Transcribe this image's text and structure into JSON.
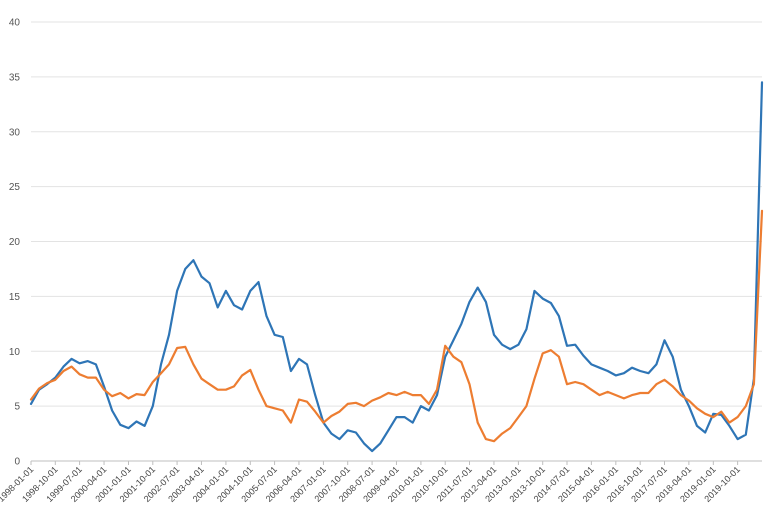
{
  "chart_data": {
    "type": "line",
    "title": "",
    "xlabel": "",
    "ylabel": "",
    "ylim": [
      0,
      40
    ],
    "yticks": [
      0,
      5,
      10,
      15,
      20,
      25,
      30,
      35,
      40
    ],
    "grid": true,
    "legend": "none",
    "xticks": [
      "1998-01-01",
      "1998-10-01",
      "1999-07-01",
      "2000-04-01",
      "2001-01-01",
      "2001-10-01",
      "2002-07-01",
      "2003-04-01",
      "2004-01-01",
      "2004-10-01",
      "2005-07-01",
      "2006-04-01",
      "2007-01-01",
      "2007-10-01",
      "2008-07-01",
      "2009-04-01",
      "2010-01-01",
      "2010-10-01",
      "2011-07-01",
      "2012-04-01",
      "2013-01-01",
      "2013-10-01",
      "2014-07-01",
      "2015-04-01",
      "2016-01-01",
      "2016-10-01",
      "2017-07-01",
      "2018-04-01",
      "2019-01-01",
      "2019-10-01"
    ],
    "x_start": "1998-01-01",
    "x_end": "2020-07-01",
    "series": [
      {
        "color": "#2e75b6",
        "points": [
          [
            "1998-01-01",
            5.2
          ],
          [
            "1998-04-01",
            6.5
          ],
          [
            "1998-07-01",
            7.0
          ],
          [
            "1998-10-01",
            7.6
          ],
          [
            "1999-01-01",
            8.6
          ],
          [
            "1999-04-01",
            9.3
          ],
          [
            "1999-07-01",
            8.9
          ],
          [
            "1999-10-01",
            9.1
          ],
          [
            "2000-01-01",
            8.8
          ],
          [
            "2000-04-01",
            6.8
          ],
          [
            "2000-07-01",
            4.6
          ],
          [
            "2000-10-01",
            3.3
          ],
          [
            "2001-01-01",
            3.0
          ],
          [
            "2001-04-01",
            3.6
          ],
          [
            "2001-07-01",
            3.2
          ],
          [
            "2001-10-01",
            5.0
          ],
          [
            "2002-01-01",
            8.8
          ],
          [
            "2002-04-01",
            11.5
          ],
          [
            "2002-07-01",
            15.5
          ],
          [
            "2002-10-01",
            17.5
          ],
          [
            "2003-01-01",
            18.3
          ],
          [
            "2003-04-01",
            16.8
          ],
          [
            "2003-07-01",
            16.2
          ],
          [
            "2003-10-01",
            14.0
          ],
          [
            "2004-01-01",
            15.5
          ],
          [
            "2004-04-01",
            14.2
          ],
          [
            "2004-07-01",
            13.8
          ],
          [
            "2004-10-01",
            15.5
          ],
          [
            "2005-01-01",
            16.3
          ],
          [
            "2005-04-01",
            13.2
          ],
          [
            "2005-07-01",
            11.5
          ],
          [
            "2005-10-01",
            11.3
          ],
          [
            "2006-01-01",
            8.2
          ],
          [
            "2006-04-01",
            9.3
          ],
          [
            "2006-07-01",
            8.8
          ],
          [
            "2006-10-01",
            6.0
          ],
          [
            "2007-01-01",
            3.5
          ],
          [
            "2007-04-01",
            2.5
          ],
          [
            "2007-07-01",
            2.0
          ],
          [
            "2007-10-01",
            2.8
          ],
          [
            "2008-01-01",
            2.6
          ],
          [
            "2008-04-01",
            1.6
          ],
          [
            "2008-07-01",
            0.9
          ],
          [
            "2008-10-01",
            1.6
          ],
          [
            "2009-01-01",
            2.8
          ],
          [
            "2009-04-01",
            4.0
          ],
          [
            "2009-07-01",
            4.0
          ],
          [
            "2009-10-01",
            3.5
          ],
          [
            "2010-01-01",
            5.0
          ],
          [
            "2010-04-01",
            4.6
          ],
          [
            "2010-07-01",
            6.0
          ],
          [
            "2010-10-01",
            9.5
          ],
          [
            "2011-01-01",
            11.0
          ],
          [
            "2011-04-01",
            12.5
          ],
          [
            "2011-07-01",
            14.5
          ],
          [
            "2011-10-01",
            15.8
          ],
          [
            "2012-01-01",
            14.5
          ],
          [
            "2012-04-01",
            11.5
          ],
          [
            "2012-07-01",
            10.6
          ],
          [
            "2012-10-01",
            10.2
          ],
          [
            "2013-01-01",
            10.6
          ],
          [
            "2013-04-01",
            12.0
          ],
          [
            "2013-07-01",
            15.5
          ],
          [
            "2013-10-01",
            14.8
          ],
          [
            "2014-01-01",
            14.4
          ],
          [
            "2014-04-01",
            13.2
          ],
          [
            "2014-07-01",
            10.5
          ],
          [
            "2014-10-01",
            10.6
          ],
          [
            "2015-01-01",
            9.6
          ],
          [
            "2015-04-01",
            8.8
          ],
          [
            "2015-07-01",
            8.5
          ],
          [
            "2015-10-01",
            8.2
          ],
          [
            "2016-01-01",
            7.8
          ],
          [
            "2016-04-01",
            8.0
          ],
          [
            "2016-07-01",
            8.5
          ],
          [
            "2016-10-01",
            8.2
          ],
          [
            "2017-01-01",
            8.0
          ],
          [
            "2017-04-01",
            8.8
          ],
          [
            "2017-07-01",
            11.0
          ],
          [
            "2017-10-01",
            9.5
          ],
          [
            "2018-01-01",
            6.5
          ],
          [
            "2018-04-01",
            5.0
          ],
          [
            "2018-07-01",
            3.2
          ],
          [
            "2018-10-01",
            2.6
          ],
          [
            "2019-01-01",
            4.3
          ],
          [
            "2019-04-01",
            4.2
          ],
          [
            "2019-07-01",
            3.2
          ],
          [
            "2019-10-01",
            2.0
          ],
          [
            "2020-01-01",
            2.4
          ],
          [
            "2020-04-01",
            7.5
          ],
          [
            "2020-07-01",
            34.5
          ]
        ]
      },
      {
        "color": "#ed7d31",
        "points": [
          [
            "1998-01-01",
            5.6
          ],
          [
            "1998-04-01",
            6.6
          ],
          [
            "1998-07-01",
            7.1
          ],
          [
            "1998-10-01",
            7.4
          ],
          [
            "1999-01-01",
            8.2
          ],
          [
            "1999-04-01",
            8.6
          ],
          [
            "1999-07-01",
            7.9
          ],
          [
            "1999-10-01",
            7.6
          ],
          [
            "2000-01-01",
            7.6
          ],
          [
            "2000-04-01",
            6.5
          ],
          [
            "2000-07-01",
            5.9
          ],
          [
            "2000-10-01",
            6.2
          ],
          [
            "2001-01-01",
            5.7
          ],
          [
            "2001-04-01",
            6.1
          ],
          [
            "2001-07-01",
            6.0
          ],
          [
            "2001-10-01",
            7.2
          ],
          [
            "2002-01-01",
            8.0
          ],
          [
            "2002-04-01",
            8.8
          ],
          [
            "2002-07-01",
            10.3
          ],
          [
            "2002-10-01",
            10.4
          ],
          [
            "2003-01-01",
            8.8
          ],
          [
            "2003-04-01",
            7.5
          ],
          [
            "2003-07-01",
            7.0
          ],
          [
            "2003-10-01",
            6.5
          ],
          [
            "2004-01-01",
            6.5
          ],
          [
            "2004-04-01",
            6.8
          ],
          [
            "2004-07-01",
            7.8
          ],
          [
            "2004-10-01",
            8.3
          ],
          [
            "2005-01-01",
            6.5
          ],
          [
            "2005-04-01",
            5.0
          ],
          [
            "2005-07-01",
            4.8
          ],
          [
            "2005-10-01",
            4.6
          ],
          [
            "2006-01-01",
            3.5
          ],
          [
            "2006-04-01",
            5.6
          ],
          [
            "2006-07-01",
            5.4
          ],
          [
            "2006-10-01",
            4.5
          ],
          [
            "2007-01-01",
            3.5
          ],
          [
            "2007-04-01",
            4.1
          ],
          [
            "2007-07-01",
            4.5
          ],
          [
            "2007-10-01",
            5.2
          ],
          [
            "2008-01-01",
            5.3
          ],
          [
            "2008-04-01",
            5.0
          ],
          [
            "2008-07-01",
            5.5
          ],
          [
            "2008-10-01",
            5.8
          ],
          [
            "2009-01-01",
            6.2
          ],
          [
            "2009-04-01",
            6.0
          ],
          [
            "2009-07-01",
            6.3
          ],
          [
            "2009-10-01",
            6.0
          ],
          [
            "2010-01-01",
            6.0
          ],
          [
            "2010-04-01",
            5.2
          ],
          [
            "2010-07-01",
            6.5
          ],
          [
            "2010-10-01",
            10.5
          ],
          [
            "2011-01-01",
            9.5
          ],
          [
            "2011-04-01",
            9.0
          ],
          [
            "2011-07-01",
            7.0
          ],
          [
            "2011-10-01",
            3.5
          ],
          [
            "2012-01-01",
            2.0
          ],
          [
            "2012-04-01",
            1.8
          ],
          [
            "2012-07-01",
            2.5
          ],
          [
            "2012-10-01",
            3.0
          ],
          [
            "2013-01-01",
            4.0
          ],
          [
            "2013-04-01",
            5.0
          ],
          [
            "2013-07-01",
            7.5
          ],
          [
            "2013-10-01",
            9.8
          ],
          [
            "2014-01-01",
            10.1
          ],
          [
            "2014-04-01",
            9.5
          ],
          [
            "2014-07-01",
            7.0
          ],
          [
            "2014-10-01",
            7.2
          ],
          [
            "2015-01-01",
            7.0
          ],
          [
            "2015-04-01",
            6.5
          ],
          [
            "2015-07-01",
            6.0
          ],
          [
            "2015-10-01",
            6.3
          ],
          [
            "2016-01-01",
            6.0
          ],
          [
            "2016-04-01",
            5.7
          ],
          [
            "2016-07-01",
            6.0
          ],
          [
            "2016-10-01",
            6.2
          ],
          [
            "2017-01-01",
            6.2
          ],
          [
            "2017-04-01",
            7.0
          ],
          [
            "2017-07-01",
            7.4
          ],
          [
            "2017-10-01",
            6.8
          ],
          [
            "2018-01-01",
            6.0
          ],
          [
            "2018-04-01",
            5.5
          ],
          [
            "2018-07-01",
            4.8
          ],
          [
            "2018-10-01",
            4.3
          ],
          [
            "2019-01-01",
            4.0
          ],
          [
            "2019-04-01",
            4.5
          ],
          [
            "2019-07-01",
            3.5
          ],
          [
            "2019-10-01",
            4.0
          ],
          [
            "2020-01-01",
            5.0
          ],
          [
            "2020-04-01",
            7.0
          ],
          [
            "2020-07-01",
            22.8
          ]
        ]
      }
    ]
  }
}
